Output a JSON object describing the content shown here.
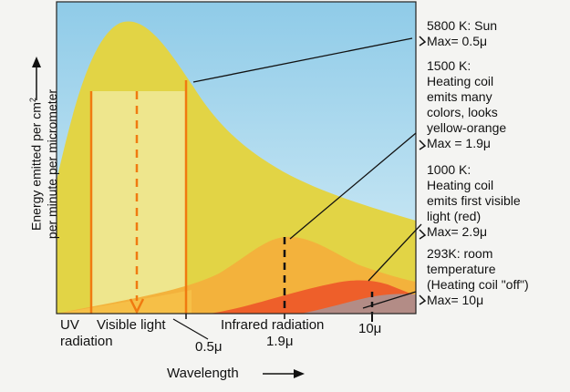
{
  "y_axis": {
    "label_line1": "Energy emitted per cm",
    "label_sup": "2",
    "label_line2": "per minute per micrometer"
  },
  "x_axis": {
    "label": "Wavelength"
  },
  "regions": {
    "uv": "UV\nradiation",
    "visible": "Visible light",
    "infrared": "Infrared radiation"
  },
  "ticks": {
    "t05": "0.5μ",
    "t19": "1.9μ",
    "t10": "10μ"
  },
  "annotations": [
    {
      "title": "5800 K: Sun",
      "max": "Max= 0.5μ",
      "color": "#e0d640"
    },
    {
      "title": "1500 K:\nHeating coil\nemits many\ncolors, looks\nyellow-orange",
      "max": "Max = 1.9μ",
      "color": "#f2a93a"
    },
    {
      "title": "1000 K:\nHeating coil\nemits first visible\nlight (red)",
      "max": "Max= 2.9μ",
      "color": "#ef6a2a"
    },
    {
      "title": "293K: room\ntemperature\n(Heating coil \"off\")",
      "max": "Max= 10μ",
      "color": "#b58a8a"
    }
  ],
  "colors": {
    "sky": "#bfe1f2",
    "sun_curve": "#e6d94b",
    "orange_curve": "#f2ae3a",
    "red_curve": "#ef5e29",
    "room_curve": "#b48b86",
    "visible_band": "#efe79a",
    "line_orange": "#f07a10"
  }
}
